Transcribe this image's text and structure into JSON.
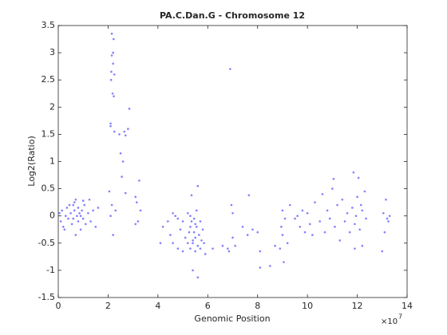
{
  "chart_data": {
    "type": "scatter",
    "title": "PA.C.Dan.G - Chromosome 12",
    "x_label": "Genomic Position",
    "y_label": "Log2(Ratio)",
    "x_multiplier": "×10",
    "x_multiplier_exponent": "7",
    "color": "#8080ff",
    "xlim": [
      0,
      14
    ],
    "xticks": [
      0,
      2,
      4,
      6,
      8,
      10,
      12,
      14
    ],
    "ylim": [
      -1.5,
      3.5
    ],
    "yticks": [
      -1.5,
      -1,
      -0.5,
      0,
      0.5,
      1,
      1.5,
      2,
      2.5,
      3,
      3.5
    ],
    "x": [
      0.05,
      0.1,
      0.15,
      0.2,
      0.3,
      0.35,
      0.4,
      0.5,
      0.55,
      0.6,
      0.65,
      0.7,
      0.7,
      0.75,
      0.8,
      0.8,
      0.85,
      0.9,
      0.95,
      1.0,
      1.05,
      1.1,
      1.2,
      1.25,
      1.3,
      1.4,
      1.5,
      1.6,
      0.6,
      0.65,
      0.9,
      1.0,
      0.25,
      0.45,
      2.05,
      2.1,
      2.1,
      2.12,
      2.13,
      2.15,
      2.15,
      2.18,
      2.2,
      2.2,
      2.22,
      2.23,
      2.25,
      2.25,
      2.15,
      2.2,
      2.1,
      2.3,
      2.45,
      2.5,
      2.55,
      2.6,
      2.65,
      2.7,
      2.7,
      2.8,
      2.85,
      3.1,
      3.15,
      3.2,
      3.25,
      3.3,
      3.1,
      4.1,
      4.2,
      4.4,
      4.5,
      4.6,
      4.7,
      4.8,
      4.9,
      5.0,
      5.0,
      5.1,
      5.2,
      5.2,
      5.25,
      5.3,
      5.3,
      5.35,
      5.35,
      5.4,
      5.4,
      5.45,
      5.45,
      5.5,
      5.5,
      5.55,
      5.55,
      5.6,
      5.6,
      5.6,
      5.65,
      5.7,
      5.7,
      5.75,
      5.8,
      5.85,
      5.9,
      5.3,
      5.4,
      5.5,
      4.6,
      4.8,
      6.2,
      6.6,
      6.8,
      6.85,
      6.9,
      6.95,
      7.0,
      7.0,
      7.1,
      7.4,
      7.6,
      7.65,
      7.8,
      8.0,
      8.1,
      8.1,
      8.5,
      8.7,
      8.9,
      8.95,
      9.0,
      9.0,
      9.05,
      9.1,
      9.2,
      9.3,
      9.5,
      9.6,
      9.7,
      9.8,
      9.9,
      10.0,
      10.1,
      10.2,
      10.3,
      10.5,
      10.6,
      10.7,
      10.8,
      10.9,
      11.0,
      11.05,
      11.1,
      11.2,
      11.3,
      11.4,
      11.5,
      11.6,
      11.7,
      11.8,
      11.85,
      11.9,
      11.95,
      12.0,
      12.05,
      12.1,
      12.15,
      12.2,
      12.3,
      12.35,
      11.9,
      12.2,
      13.0,
      13.05,
      13.1,
      13.15,
      13.2,
      13.25,
      13.3
    ],
    "values": [
      0.05,
      -0.1,
      0.1,
      -0.2,
      0,
      0.15,
      -0.05,
      0.05,
      -0.15,
      0.2,
      0.1,
      -0.35,
      0.3,
      0,
      -0.1,
      0.15,
      0.05,
      -0.25,
      0.1,
      -0.05,
      0.2,
      -0.15,
      0.05,
      0.3,
      -0.1,
      0.1,
      -0.2,
      0.15,
      -0.05,
      0.25,
      0,
      0.28,
      -0.25,
      0.2,
      0.45,
      1.65,
      1.7,
      2.5,
      2.65,
      2.95,
      3.35,
      2.25,
      3.0,
      2.8,
      3.25,
      2.2,
      2.6,
      1.55,
      0.2,
      -0.35,
      0,
      0.1,
      1.5,
      1.15,
      0.72,
      1.0,
      1.55,
      1.48,
      0.42,
      1.6,
      1.97,
      0.35,
      0.25,
      -0.1,
      0.65,
      0.1,
      -0.15,
      -0.5,
      -0.2,
      -0.1,
      -0.35,
      -0.5,
      0,
      -0.6,
      -0.25,
      -0.1,
      -0.65,
      -0.4,
      0.05,
      -0.5,
      -0.3,
      -0.6,
      -0.2,
      0.38,
      -0.1,
      -1.0,
      -0.5,
      -0.3,
      -0.05,
      -0.65,
      -0.4,
      0.1,
      -0.2,
      -1.13,
      -0.55,
      0.55,
      -0.35,
      -0.1,
      -0.6,
      -0.45,
      -0.25,
      -0.5,
      -0.7,
      0,
      -0.45,
      -0.15,
      0.05,
      -0.05,
      -0.6,
      -0.55,
      -0.6,
      -0.65,
      2.7,
      0.2,
      0.05,
      -0.4,
      -0.55,
      -0.2,
      -0.35,
      0.38,
      -0.25,
      -0.3,
      -0.65,
      -0.95,
      -0.92,
      -0.55,
      -0.6,
      -0.2,
      -0.35,
      0.1,
      -0.85,
      -0.05,
      -0.5,
      0.2,
      -0.05,
      0,
      -0.2,
      0.1,
      -0.3,
      0.05,
      -0.15,
      -0.35,
      0.25,
      -0.1,
      0.4,
      -0.3,
      0.1,
      -0.05,
      0.5,
      0.68,
      -0.2,
      0.2,
      -0.45,
      0.3,
      -0.1,
      0.05,
      -0.3,
      0.15,
      0.8,
      -0.15,
      0,
      0.35,
      0.7,
      -0.25,
      0.2,
      0.1,
      0.45,
      -0.05,
      -0.6,
      -0.55,
      -0.65,
      0.05,
      -0.3,
      0.3,
      -0.05,
      -0.1,
      0
    ]
  }
}
